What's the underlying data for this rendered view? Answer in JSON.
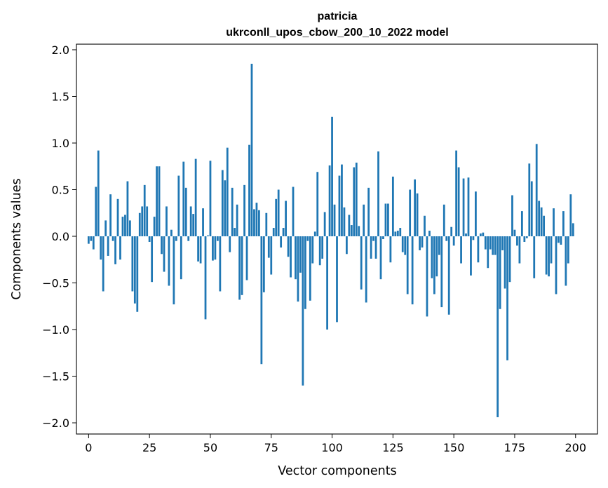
{
  "chart_data": {
    "type": "bar",
    "title": "patricia",
    "subtitle": "ukrconll_upos_cbow_200_10_2022 model",
    "xlabel": "Vector components",
    "ylabel": "Components values",
    "xlim": [
      -5,
      209
    ],
    "ylim": [
      -2.12,
      2.06
    ],
    "x_ticks": [
      0,
      25,
      50,
      75,
      100,
      125,
      150,
      175,
      200
    ],
    "x_tick_labels": [
      "0",
      "25",
      "50",
      "75",
      "100",
      "125",
      "150",
      "175",
      "200"
    ],
    "y_ticks": [
      2.0,
      1.5,
      1.0,
      0.5,
      0.0,
      -0.5,
      -1.0,
      -1.5,
      -2.0
    ],
    "y_tick_labels": [
      "2.0",
      "1.5",
      "1.0",
      "0.5",
      "0.0",
      "−0.5",
      "−1.0",
      "−1.5",
      "−2.0"
    ],
    "bar_color": "#1f77b4",
    "grid": false,
    "values": [
      -0.08,
      -0.05,
      -0.14,
      0.53,
      0.92,
      -0.25,
      -0.59,
      0.17,
      -0.21,
      0.45,
      -0.05,
      -0.3,
      0.4,
      -0.25,
      0.21,
      0.23,
      0.59,
      0.17,
      -0.59,
      -0.72,
      -0.81,
      0.25,
      0.32,
      0.55,
      0.32,
      -0.06,
      -0.49,
      0.21,
      0.75,
      0.75,
      -0.19,
      -0.38,
      0.32,
      -0.53,
      0.07,
      -0.73,
      -0.05,
      0.65,
      -0.46,
      0.8,
      0.52,
      -0.05,
      0.32,
      0.24,
      0.83,
      -0.27,
      -0.29,
      0.3,
      -0.89,
      0.01,
      0.81,
      -0.26,
      -0.25,
      -0.05,
      -0.59,
      0.71,
      0.6,
      0.95,
      -0.17,
      0.52,
      0.09,
      0.34,
      -0.68,
      -0.63,
      0.55,
      -0.47,
      0.98,
      1.85,
      0.29,
      0.36,
      0.28,
      -1.37,
      -0.6,
      0.25,
      -0.23,
      -0.41,
      0.09,
      0.4,
      0.5,
      -0.12,
      0.09,
      0.38,
      -0.22,
      -0.44,
      0.53,
      -0.46,
      -0.7,
      -0.39,
      -1.6,
      -0.78,
      -0.05,
      -0.69,
      -0.29,
      0.05,
      0.69,
      -0.31,
      -0.24,
      0.26,
      -1.0,
      0.76,
      1.28,
      0.34,
      -0.92,
      0.65,
      0.77,
      0.31,
      -0.19,
      0.23,
      0.12,
      0.74,
      0.79,
      0.11,
      -0.57,
      0.34,
      -0.71,
      0.52,
      -0.24,
      -0.05,
      -0.24,
      0.91,
      -0.46,
      -0.03,
      0.35,
      0.35,
      -0.28,
      0.64,
      0.05,
      0.06,
      0.09,
      -0.17,
      -0.2,
      -0.62,
      0.5,
      -0.73,
      0.61,
      0.46,
      -0.15,
      -0.12,
      0.22,
      -0.86,
      0.06,
      -0.45,
      -0.62,
      -0.43,
      -0.2,
      -0.76,
      0.34,
      -0.05,
      -0.84,
      0.1,
      -0.1,
      0.92,
      0.74,
      -0.29,
      0.62,
      0.03,
      0.63,
      -0.42,
      -0.04,
      0.48,
      -0.28,
      0.03,
      0.04,
      -0.14,
      -0.34,
      -0.14,
      -0.2,
      -0.2,
      -1.94,
      -0.78,
      -0.15,
      -0.56,
      -1.33,
      -0.49,
      0.44,
      0.07,
      -0.1,
      -0.29,
      0.27,
      -0.06,
      -0.02,
      0.78,
      0.59,
      -0.45,
      0.99,
      0.38,
      0.31,
      0.22,
      -0.41,
      -0.43,
      -0.29,
      0.3,
      -0.62,
      -0.07,
      -0.09,
      0.27,
      -0.53,
      -0.29,
      0.45,
      0.14
    ]
  }
}
